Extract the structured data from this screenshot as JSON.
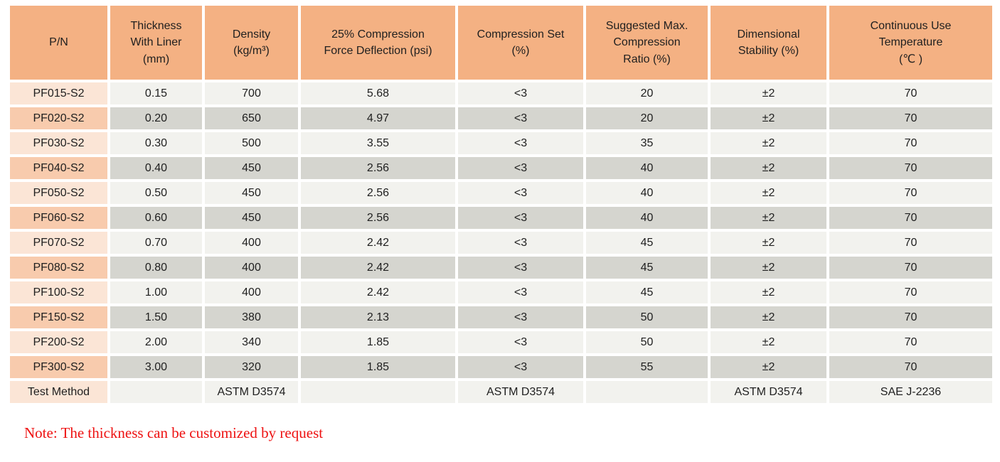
{
  "table": {
    "headers": [
      {
        "label": "P/N"
      },
      {
        "label": "Thickness\nWith Liner\n(mm)"
      },
      {
        "label": "Density\n(kg/m³)"
      },
      {
        "label": "25% Compression\nForce Deflection (psi)"
      },
      {
        "label": "Compression Set\n(%)"
      },
      {
        "label": "Suggested Max.\nCompression\nRatio (%)"
      },
      {
        "label": "Dimensional\nStability (%)"
      },
      {
        "label": "Continuous Use\nTemperature\n(℃ )"
      }
    ],
    "rows": [
      [
        "PF015-S2",
        "0.15",
        "700",
        "5.68",
        "<3",
        "20",
        "±2",
        "70"
      ],
      [
        "PF020-S2",
        "0.20",
        "650",
        "4.97",
        "<3",
        "20",
        "±2",
        "70"
      ],
      [
        "PF030-S2",
        "0.30",
        "500",
        "3.55",
        "<3",
        "35",
        "±2",
        "70"
      ],
      [
        "PF040-S2",
        "0.40",
        "450",
        "2.56",
        "<3",
        "40",
        "±2",
        "70"
      ],
      [
        "PF050-S2",
        "0.50",
        "450",
        "2.56",
        "<3",
        "40",
        "±2",
        "70"
      ],
      [
        "PF060-S2",
        "0.60",
        "450",
        "2.56",
        "<3",
        "40",
        "±2",
        "70"
      ],
      [
        "PF070-S2",
        "0.70",
        "400",
        "2.42",
        "<3",
        "45",
        "±2",
        "70"
      ],
      [
        "PF080-S2",
        "0.80",
        "400",
        "2.42",
        "<3",
        "45",
        "±2",
        "70"
      ],
      [
        "PF100-S2",
        "1.00",
        "400",
        "2.42",
        "<3",
        "45",
        "±2",
        "70"
      ],
      [
        "PF150-S2",
        "1.50",
        "380",
        "2.13",
        "<3",
        "50",
        "±2",
        "70"
      ],
      [
        "PF200-S2",
        "2.00",
        "340",
        "1.85",
        "<3",
        "50",
        "±2",
        "70"
      ],
      [
        "PF300-S2",
        "3.00",
        "320",
        "1.85",
        "<3",
        "55",
        "±2",
        "70"
      ]
    ],
    "footer_row": [
      "Test Method",
      "",
      "ASTM D3574",
      "",
      "ASTM D3574",
      "",
      "ASTM D3574",
      "SAE J-2236"
    ]
  },
  "note": {
    "text": "Note: The thickness can be customized by request"
  },
  "colors": {
    "header_bg": "#F4B183",
    "pn_light": "#FBE5D6",
    "pn_dark": "#F8CBAD",
    "cell_light": "#F2F2EE",
    "cell_dark": "#D5D5CF",
    "text_color": "#1F1F1F",
    "note_red": "#EE1111"
  }
}
